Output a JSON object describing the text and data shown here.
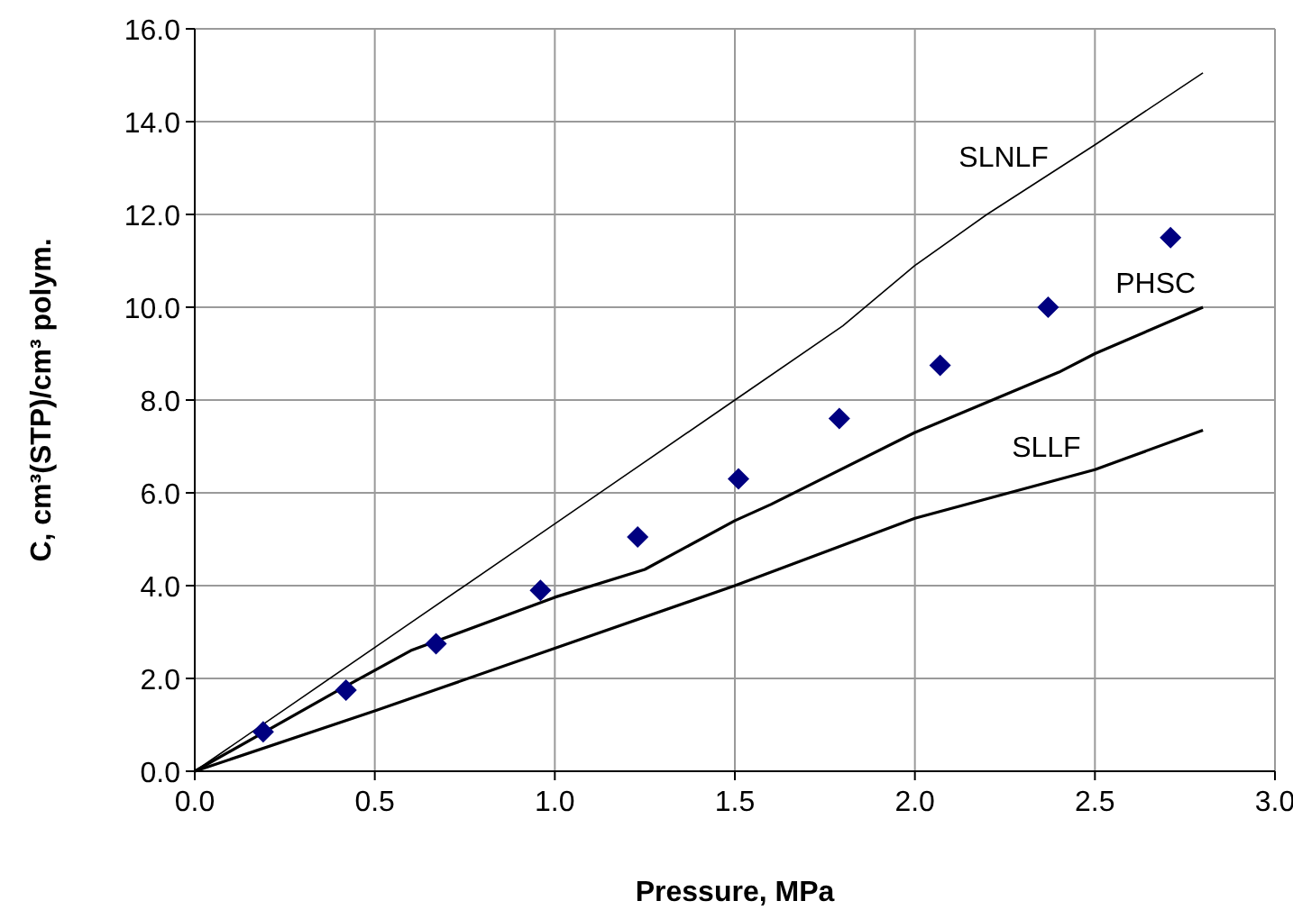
{
  "chart_data": {
    "type": "line",
    "xlabel": "Pressure, MPa",
    "ylabel": "C, cm³(STP)/cm³ polym.",
    "xlim": [
      0,
      3
    ],
    "ylim": [
      0,
      16
    ],
    "xticks": [
      {
        "value": 0,
        "label": "0.0"
      },
      {
        "value": 0.5,
        "label": "0.5"
      },
      {
        "value": 1,
        "label": "1.0"
      },
      {
        "value": 1.5,
        "label": "1.5"
      },
      {
        "value": 2,
        "label": "2.0"
      },
      {
        "value": 2.5,
        "label": "2.5"
      },
      {
        "value": 3,
        "label": "3.0"
      }
    ],
    "yticks": [
      {
        "value": 0,
        "label": "0.0"
      },
      {
        "value": 2,
        "label": "2.0"
      },
      {
        "value": 4,
        "label": "4.0"
      },
      {
        "value": 6,
        "label": "6.0"
      },
      {
        "value": 8,
        "label": "8.0"
      },
      {
        "value": 10,
        "label": "10.0"
      },
      {
        "value": 12,
        "label": "12.0"
      },
      {
        "value": 14,
        "label": "14.0"
      },
      {
        "value": 16,
        "label": "16.0"
      }
    ],
    "grid": true,
    "series": [
      {
        "name": "SLNLF",
        "color": "#000000",
        "marker": "none",
        "x": [
          0,
          0.3,
          0.6,
          0.9,
          1.2,
          1.5,
          1.8,
          2.0,
          2.2,
          2.5,
          2.8
        ],
        "values": [
          0,
          1.6,
          3.2,
          4.8,
          6.4,
          8.0,
          9.6,
          10.9,
          12.0,
          13.5,
          15.05
        ]
      },
      {
        "name": "PHSC",
        "color": "#000000",
        "marker": "none",
        "x": [
          0,
          0.4,
          0.6,
          1.0,
          1.25,
          1.5,
          1.6,
          2.0,
          2.4,
          2.5,
          2.8
        ],
        "values": [
          0,
          1.75,
          2.6,
          3.75,
          4.35,
          5.4,
          5.75,
          7.3,
          8.6,
          9.0,
          10.0
        ]
      },
      {
        "name": "SLLF",
        "color": "#000000",
        "marker": "none",
        "x": [
          0,
          0.5,
          1.0,
          1.5,
          2.0,
          2.5,
          2.8
        ],
        "values": [
          0,
          1.3,
          2.65,
          4.0,
          5.45,
          6.5,
          7.35
        ]
      },
      {
        "type": "scatter",
        "color": "#000080",
        "marker": "diamond",
        "x": [
          0.19,
          0.42,
          0.67,
          0.96,
          1.23,
          1.51,
          1.79,
          2.07,
          2.37,
          2.71
        ],
        "values": [
          0.85,
          1.75,
          2.75,
          3.9,
          5.05,
          6.3,
          7.6,
          8.75,
          10.0,
          11.5
        ]
      }
    ]
  }
}
